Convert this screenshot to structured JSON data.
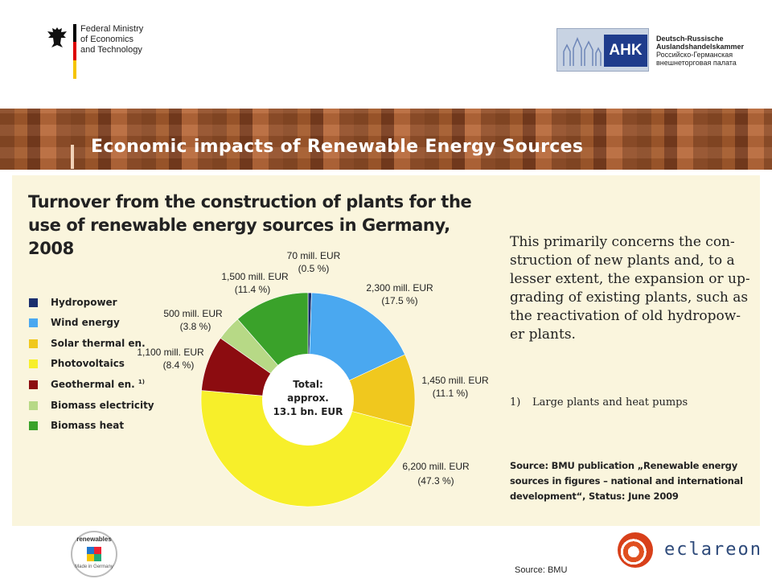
{
  "header": {
    "ministry_lines": [
      "Federal Ministry",
      "of Economics",
      "and Technology"
    ],
    "ahk_mark": "AHK",
    "ahk_lines": [
      "Deutsch-Russische",
      "Auslandshandelskammer",
      "Российско-Германская",
      "внешнеторговая палата"
    ]
  },
  "banner": {
    "title": "Economic impacts of Renewable Energy Sources"
  },
  "panel": {
    "description": "This primarily concerns the con-struction of new plants and, to a lesser extent, the expansion or up-grading of existing plants, such as the reactivation of old hydropow-er plants.",
    "footnote_number": "1)",
    "footnote_text": "Large plants and heat pumps",
    "source": "Source: BMU publication „Renewable energy sources in figures – national and international development“, Status: June 2009"
  },
  "chart_data": {
    "type": "pie",
    "title": "Turnover from the construction of plants for the use of renewable energy sources in Germany, 2008",
    "center_label": [
      "Total:",
      "approx.",
      "13.1 bn. EUR"
    ],
    "unit": "mill. EUR",
    "slices": [
      {
        "name": "Hydropower",
        "value": 70,
        "percent": 0.5,
        "value_label": "70 mill. EUR",
        "percent_label": "(0.5 %)",
        "color": "#1a2f6e"
      },
      {
        "name": "Wind energy",
        "value": 2300,
        "percent": 17.5,
        "value_label": "2,300 mill. EUR",
        "percent_label": "(17.5 %)",
        "color": "#4aa8f0"
      },
      {
        "name": "Solar thermal en.",
        "value": 1450,
        "percent": 11.1,
        "value_label": "1,450 mill. EUR",
        "percent_label": "(11.1 %)",
        "color": "#f0c81e"
      },
      {
        "name": "Photovoltaics",
        "value": 6200,
        "percent": 47.3,
        "value_label": "6,200 mill. EUR",
        "percent_label": "(47.3 %)",
        "color": "#f7ef2a"
      },
      {
        "name": "Geothermal en.",
        "footnote": "1)",
        "value": 1100,
        "percent": 8.4,
        "value_label": "1,100 mill. EUR",
        "percent_label": "(8.4 %)",
        "color": "#8c0c10"
      },
      {
        "name": "Biomass electricity",
        "value": 500,
        "percent": 3.8,
        "value_label": "500 mill. EUR",
        "percent_label": "(3.8 %)",
        "color": "#b7d986"
      },
      {
        "name": "Biomass heat",
        "value": 1500,
        "percent": 11.4,
        "value_label": "1,500 mill. EUR",
        "percent_label": "(11.4 %)",
        "color": "#3aa22a"
      }
    ],
    "start_angle_deg": 0,
    "direction": "clockwise",
    "legend_position": "left"
  },
  "footer": {
    "renewables_text": "renewables",
    "renewables_sub": "Made in Germany",
    "eclareon_text": "eclareon",
    "source": "Source: BMU"
  }
}
